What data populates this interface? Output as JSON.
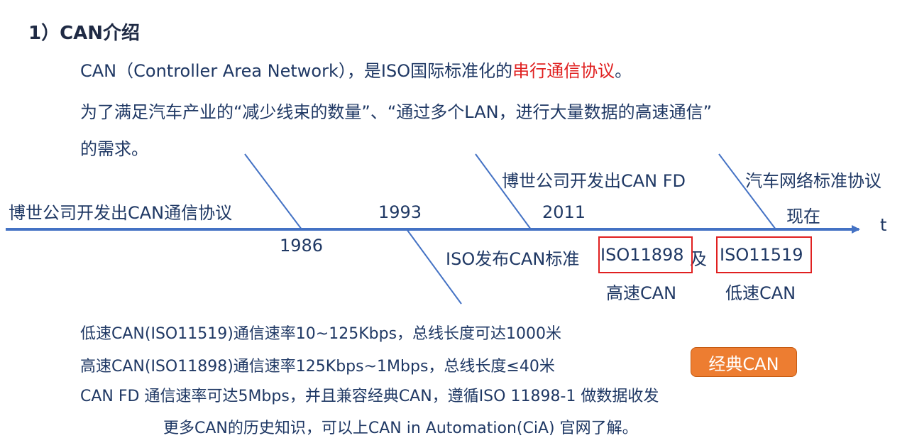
{
  "heading": "1）CAN介绍",
  "intro": {
    "line1_prefix": "CAN（Controller Area Network），是ISO国际标准化的",
    "line1_highlight": "串行通信协议",
    "line1_suffix": "。",
    "line2": "为了满足汽车产业的“减少线束的数量”、“通过多个LAN，进行大量数据的高速通信”",
    "line3": "的需求。"
  },
  "timeline": {
    "event_1986": "博世公司开发出CAN通信协议",
    "year_1986": "1986",
    "year_1993": "1993",
    "event_1993_prefix": "ISO发布CAN标准",
    "event_1993_iso_high": "ISO11898",
    "event_1993_and": "及",
    "event_1993_iso_low": "ISO11519",
    "label_high_speed": "高速CAN",
    "label_low_speed": "低速CAN",
    "event_2011": "博世公司开发出CAN FD",
    "year_2011": "2011",
    "event_now": "汽车网络标准协议",
    "year_now": "现在",
    "axis_label": "t",
    "axis_color": "#4472c4"
  },
  "details": {
    "low_speed": "低速CAN(ISO11519)通信速率10~125Kbps，总线长度可达1000米",
    "high_speed": "高速CAN(ISO11898)通信速率125Kbps~1Mbps，总线长度≤40米",
    "canfd": "CAN FD 通信速率可达5Mbps，并且兼容经典CAN，遵循ISO 11898-1 做数据收发",
    "more": "更多CAN的历史知识，可以上CAN in Automation(CiA) 官网了解。"
  },
  "badge": {
    "label": "经典CAN",
    "color": "#ed7d31"
  }
}
